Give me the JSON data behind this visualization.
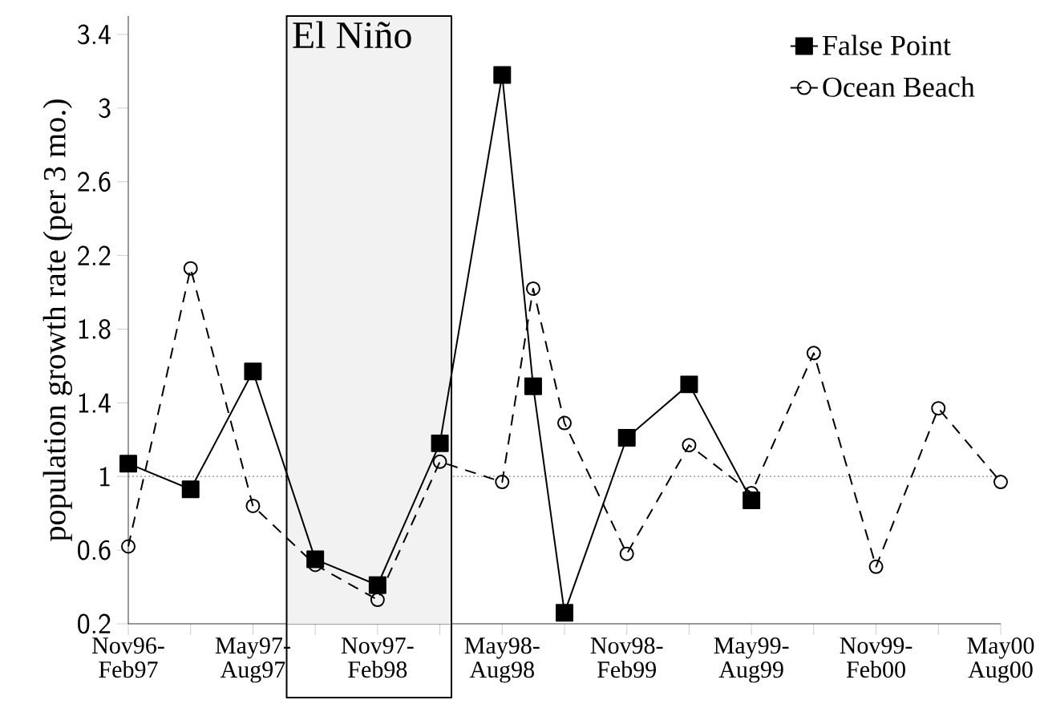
{
  "chart_data": {
    "type": "line",
    "ylabel": "population growth rate (per 3 mo.)",
    "x": [
      "1996-11",
      "1997-02",
      "1997-05",
      "1997-08",
      "1997-11",
      "1998-02",
      "1998-05",
      "1998-06-16",
      "1998-08",
      "1998-11",
      "1999-02",
      "1999-05",
      "1999-08",
      "1999-11",
      "2000-02",
      "2000-05"
    ],
    "series": [
      {
        "name": "False Point",
        "color": "#000000",
        "marker": "square",
        "line_style": "solid",
        "values": [
          1.07,
          0.93,
          1.57,
          0.55,
          0.41,
          1.18,
          3.18,
          1.49,
          0.26,
          1.21,
          1.5,
          0.87,
          null,
          null,
          null,
          null
        ]
      },
      {
        "name": "Ocean Beach",
        "color": "#000000",
        "marker": "circle",
        "line_style": "dashed",
        "values": [
          0.62,
          2.13,
          0.84,
          0.52,
          0.33,
          1.08,
          0.97,
          2.02,
          1.29,
          0.58,
          1.17,
          0.91,
          1.67,
          0.51,
          1.37,
          0.97
        ]
      }
    ],
    "xlim": [
      "1996-11",
      "2000-05"
    ],
    "xticks": [
      {
        "value": "1996-11",
        "label": "Nov96-Feb97"
      },
      {
        "value": "1997-02",
        "label": null
      },
      {
        "value": "1997-05",
        "label": "May97-Aug97"
      },
      {
        "value": "1997-08",
        "label": null
      },
      {
        "value": "1997-11",
        "label": "Nov97-Feb98"
      },
      {
        "value": "1998-02",
        "label": null
      },
      {
        "value": "1998-05",
        "label": "May98-Aug98"
      },
      {
        "value": "1998-08",
        "label": null
      },
      {
        "value": "1998-11",
        "label": "Nov98-Feb99"
      },
      {
        "value": "1999-02",
        "label": null
      },
      {
        "value": "1999-05",
        "label": "May99-Aug99"
      },
      {
        "value": "1999-08",
        "label": null
      },
      {
        "value": "1999-11",
        "label": "Nov99-Feb00"
      },
      {
        "value": "2000-02",
        "label": null
      },
      {
        "value": "2000-05",
        "label": "May00 Aug00"
      }
    ],
    "ylim": [
      0.2,
      3.5
    ],
    "yticks": [
      0.2,
      0.6,
      1,
      1.4,
      1.8,
      2.2,
      2.6,
      3,
      3.4
    ],
    "ref_lines": [
      {
        "axis": "y",
        "value": 1,
        "color": "#888888",
        "line_style": "dotted"
      }
    ],
    "bands": [
      {
        "axis": "x",
        "from": "1997-06-20",
        "to": "1998-02-18",
        "label": "El Niño",
        "color": "#f2f2f2"
      }
    ],
    "legend": "top right",
    "grid": false
  }
}
